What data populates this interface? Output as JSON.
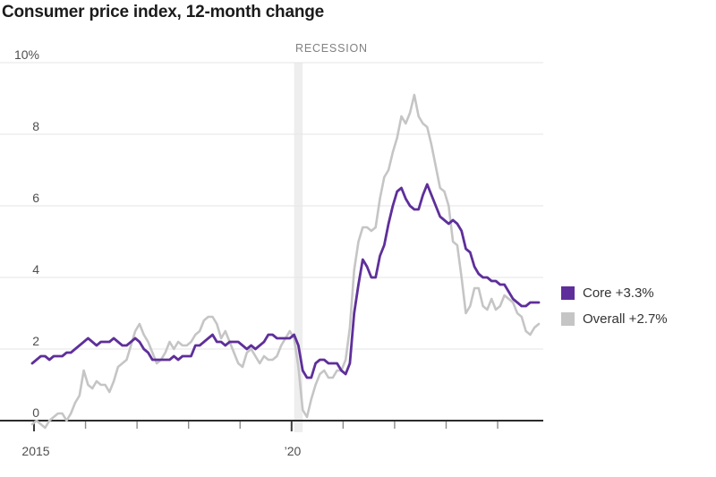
{
  "title": "Consumer price index, 12-month change",
  "chart_data": {
    "type": "line",
    "title": "Consumer price index, 12-month change",
    "frequency": "monthly",
    "x_start": "2015-01",
    "x_end": "2024-11",
    "ylim": [
      0,
      10
    ],
    "grid": "horizontal",
    "legend_position": "right",
    "colors": {
      "core": "#5e2f9a",
      "overall": "#c5c5c5",
      "gridline": "#e5e5e5",
      "zero_axis": "#2b2b2b",
      "recession_band": "#eeeeee"
    },
    "y_axis": {
      "ticks": [
        {
          "value": 10,
          "label": "10%"
        },
        {
          "value": 8,
          "label": "8"
        },
        {
          "value": 6,
          "label": "6"
        },
        {
          "value": 4,
          "label": "4"
        },
        {
          "value": 2,
          "label": "2"
        },
        {
          "value": 0,
          "label": "0"
        }
      ]
    },
    "x_axis": {
      "ticks": [
        {
          "year": 2015,
          "label": "2015"
        },
        {
          "year": 2016,
          "label": ""
        },
        {
          "year": 2017,
          "label": ""
        },
        {
          "year": 2018,
          "label": ""
        },
        {
          "year": 2019,
          "label": ""
        },
        {
          "year": 2020,
          "label": "’20"
        },
        {
          "year": 2021,
          "label": ""
        },
        {
          "year": 2022,
          "label": ""
        },
        {
          "year": 2023,
          "label": ""
        },
        {
          "year": 2024,
          "label": ""
        }
      ]
    },
    "recession": {
      "label": "RECESSION",
      "start": "2020-02",
      "end": "2020-04"
    },
    "legend": [
      {
        "series": "core",
        "label": "Core +3.3%",
        "color": "#5e2f9a"
      },
      {
        "series": "overall",
        "label": "Overall +2.7%",
        "color": "#c5c5c5"
      }
    ],
    "series": [
      {
        "name": "Overall",
        "latest": 2.7,
        "color": "#c5c5c5",
        "stroke_width": 2.6,
        "values": [
          -0.1,
          0.0,
          -0.1,
          -0.2,
          0.0,
          0.1,
          0.2,
          0.2,
          0.0,
          0.2,
          0.5,
          0.7,
          1.4,
          1.0,
          0.9,
          1.1,
          1.0,
          1.0,
          0.8,
          1.1,
          1.5,
          1.6,
          1.7,
          2.1,
          2.5,
          2.7,
          2.4,
          2.2,
          1.9,
          1.6,
          1.7,
          1.9,
          2.2,
          2.0,
          2.2,
          2.1,
          2.1,
          2.2,
          2.4,
          2.5,
          2.8,
          2.9,
          2.9,
          2.7,
          2.3,
          2.5,
          2.2,
          1.9,
          1.6,
          1.5,
          1.9,
          2.0,
          1.8,
          1.6,
          1.8,
          1.7,
          1.7,
          1.8,
          2.1,
          2.3,
          2.5,
          2.3,
          1.5,
          0.3,
          0.1,
          0.6,
          1.0,
          1.3,
          1.4,
          1.2,
          1.2,
          1.4,
          1.4,
          1.7,
          2.6,
          4.2,
          5.0,
          5.4,
          5.4,
          5.3,
          5.4,
          6.2,
          6.8,
          7.0,
          7.5,
          7.9,
          8.5,
          8.3,
          8.6,
          9.1,
          8.5,
          8.3,
          8.2,
          7.7,
          7.1,
          6.5,
          6.4,
          6.0,
          5.0,
          4.9,
          4.0,
          3.0,
          3.2,
          3.7,
          3.7,
          3.2,
          3.1,
          3.4,
          3.1,
          3.2,
          3.5,
          3.4,
          3.3,
          3.0,
          2.9,
          2.5,
          2.4,
          2.6,
          2.7
        ]
      },
      {
        "name": "Core",
        "latest": 3.3,
        "color": "#5e2f9a",
        "stroke_width": 2.8,
        "values": [
          1.6,
          1.7,
          1.8,
          1.8,
          1.7,
          1.8,
          1.8,
          1.8,
          1.9,
          1.9,
          2.0,
          2.1,
          2.2,
          2.3,
          2.2,
          2.1,
          2.2,
          2.2,
          2.2,
          2.3,
          2.2,
          2.1,
          2.1,
          2.2,
          2.3,
          2.2,
          2.0,
          1.9,
          1.7,
          1.7,
          1.7,
          1.7,
          1.7,
          1.8,
          1.7,
          1.8,
          1.8,
          1.8,
          2.1,
          2.1,
          2.2,
          2.3,
          2.4,
          2.2,
          2.2,
          2.1,
          2.2,
          2.2,
          2.2,
          2.1,
          2.0,
          2.1,
          2.0,
          2.1,
          2.2,
          2.4,
          2.4,
          2.3,
          2.3,
          2.3,
          2.3,
          2.4,
          2.1,
          1.4,
          1.2,
          1.2,
          1.6,
          1.7,
          1.7,
          1.6,
          1.6,
          1.6,
          1.4,
          1.3,
          1.6,
          3.0,
          3.8,
          4.5,
          4.3,
          4.0,
          4.0,
          4.6,
          4.9,
          5.5,
          6.0,
          6.4,
          6.5,
          6.2,
          6.0,
          5.9,
          5.9,
          6.3,
          6.6,
          6.3,
          6.0,
          5.7,
          5.6,
          5.5,
          5.6,
          5.5,
          5.3,
          4.8,
          4.7,
          4.3,
          4.1,
          4.0,
          4.0,
          3.9,
          3.9,
          3.8,
          3.8,
          3.6,
          3.4,
          3.3,
          3.2,
          3.2,
          3.3,
          3.3,
          3.3
        ]
      }
    ]
  }
}
